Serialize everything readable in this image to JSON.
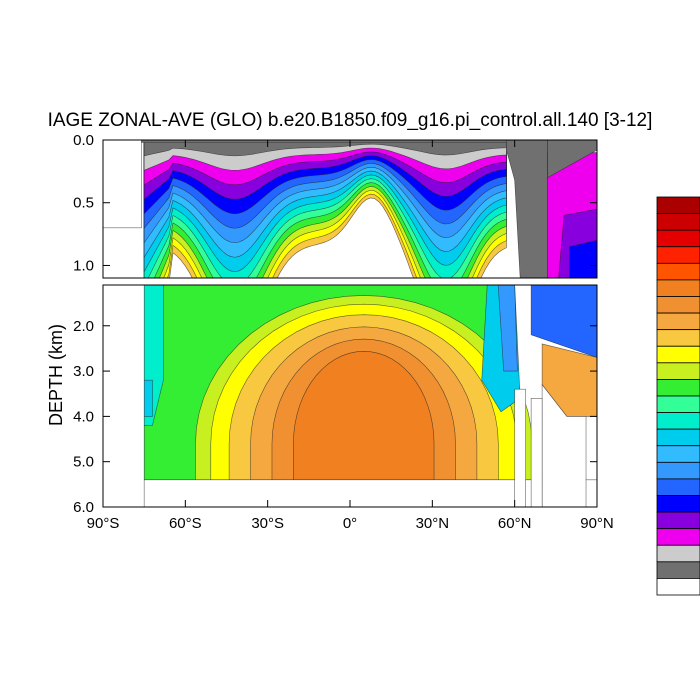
{
  "chart_data": {
    "type": "heatmap",
    "title": "IAGE ZONAL-AVE (GLO) b.e20.B1850.f09_g16.pi_control.all.140 [3-12]",
    "xlabel": "",
    "ylabel": "DEPTH (km)",
    "x_ticks": [
      "90°S",
      "60°S",
      "30°S",
      "0°",
      "30°N",
      "60°N",
      "90°N"
    ],
    "x_tick_values": [
      -90,
      -60,
      -30,
      0,
      30,
      60,
      90
    ],
    "y_ticks_upper": [
      "0.0",
      "0.5",
      "1.0"
    ],
    "y_tick_values_upper": [
      0.0,
      0.5,
      1.0
    ],
    "y_ticks_lower": [
      "2.0",
      "3.0",
      "4.0",
      "5.0",
      "6.0"
    ],
    "y_tick_values_lower": [
      2.0,
      3.0,
      4.0,
      5.0,
      6.0
    ],
    "xlim": [
      -90,
      90
    ],
    "ylim_upper": [
      0.0,
      1.1
    ],
    "ylim_lower": [
      1.1,
      6.0
    ],
    "colorbar": {
      "labels": [],
      "colors_top_to_bottom": [
        "#aa0000",
        "#cc0000",
        "#e40000",
        "#ff2200",
        "#ff5500",
        "#f08020",
        "#f09030",
        "#f5a840",
        "#f8c840",
        "#ffff00",
        "#c8f020",
        "#33ee33",
        "#33ff99",
        "#00eecc",
        "#00ccee",
        "#33bbff",
        "#3399ff",
        "#2266ff",
        "#0000ff",
        "#8800dd",
        "#ee00ee",
        "#cccccc",
        "#707070",
        "#ffffff"
      ]
    },
    "colors": {
      "land": "#707070",
      "shelf": "#cccccc",
      "magenta": "#ee00ee",
      "purple": "#8800dd",
      "blue": "#0000ff",
      "mid_blue": "#2266ff",
      "light_blue": "#3399ff",
      "sky": "#33bbff",
      "cyan": "#00ccee",
      "aqua": "#00eecc",
      "mint": "#33ff99",
      "green": "#33ee33",
      "lime": "#c8f020",
      "yellow": "#ffff00",
      "light_orange": "#f8c840",
      "orange": "#f5a840",
      "dark_orange": "#f09030",
      "deep_orange": "#f08020"
    }
  }
}
